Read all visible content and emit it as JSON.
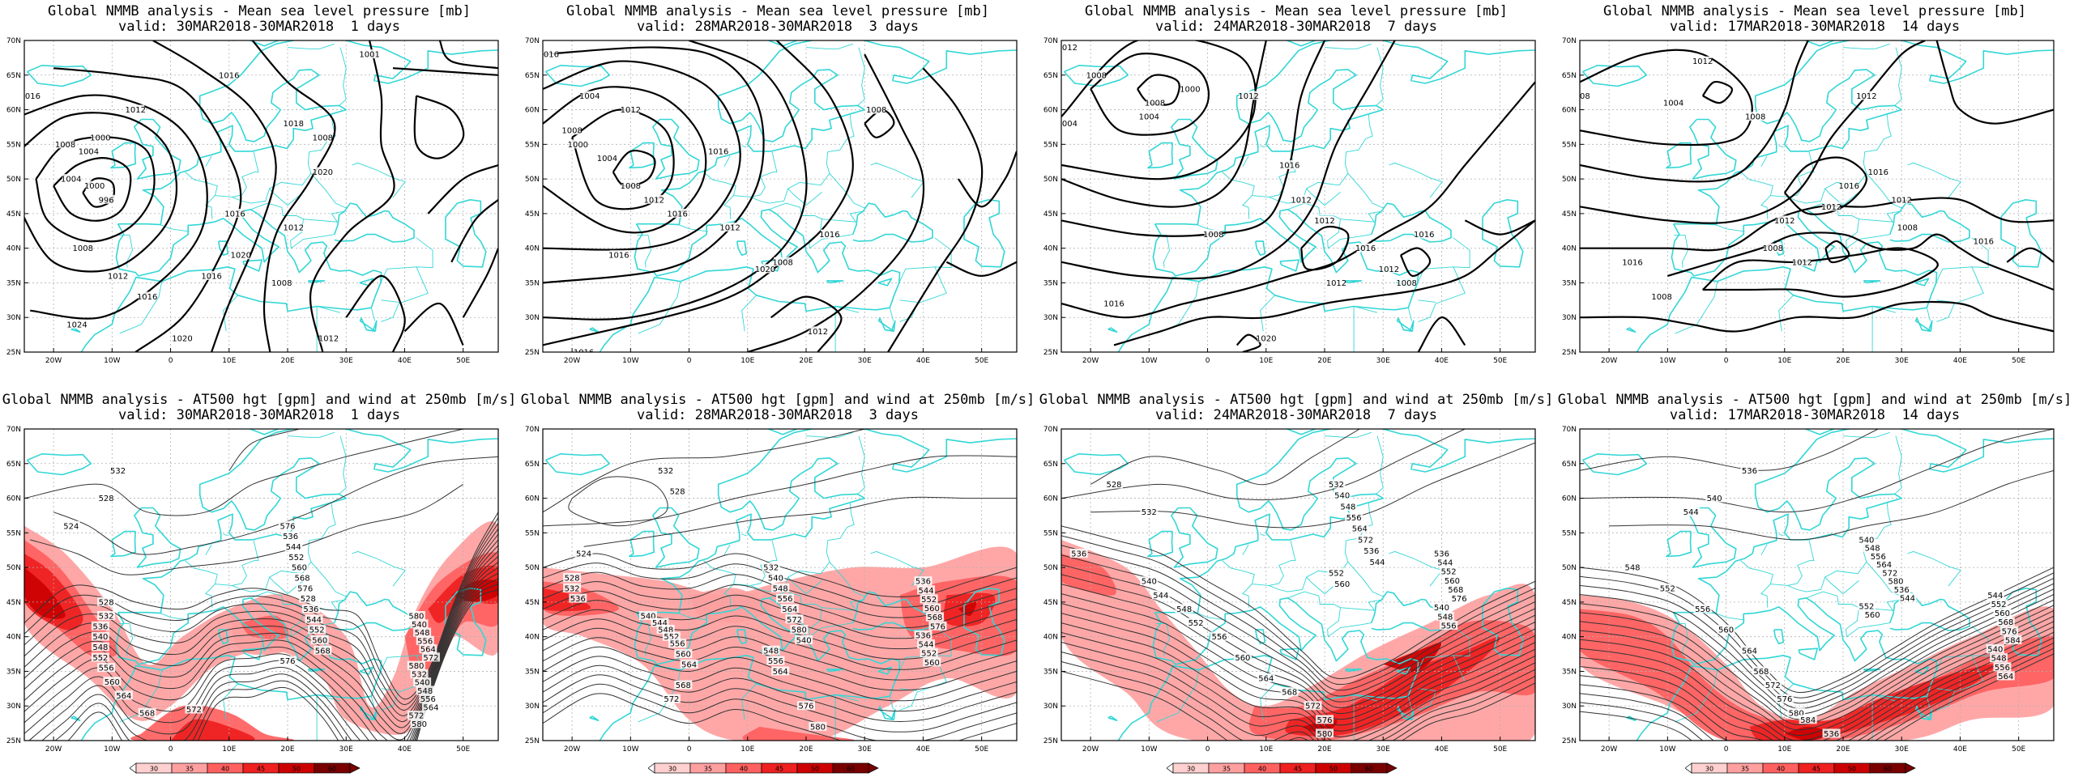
{
  "figure": {
    "colors": {
      "coast": "#33d6d6",
      "contour": "#000000",
      "grid": "#b0b0b0",
      "wind_scale": [
        "#ffffff",
        "#ffd0d0",
        "#ffa0a0",
        "#ff6060",
        "#ee2020",
        "#cc0000",
        "#7a0000"
      ]
    },
    "lat_labels": [
      "70N",
      "65N",
      "60N",
      "55N",
      "50N",
      "45N",
      "40N",
      "35N",
      "30N",
      "25N"
    ],
    "lon_labels": [
      "20W",
      "10W",
      "0",
      "10E",
      "20E",
      "30E",
      "40E",
      "50E"
    ],
    "colorbar_ticks": [
      "30",
      "35",
      "40",
      "45",
      "50",
      "60"
    ],
    "panels": [
      {
        "row": "mslp",
        "title": "Global NMMB analysis - Mean sea level pressure [mb]",
        "valid": "valid: 30MAR2018-30MAR2018  1 days",
        "contour_labels": [
          "1004",
          "1000",
          "1016",
          "1012",
          "1008",
          "1004",
          "1000",
          "996",
          "1008",
          "1012",
          "1016",
          "1020",
          "1024",
          "1020",
          "1016",
          "1012",
          "1008",
          "1020",
          "1016",
          "1016",
          "1008",
          "1012",
          "1001",
          "1018"
        ]
      },
      {
        "row": "mslp",
        "title": "Global NMMB analysis - Mean sea level pressure [mb]",
        "valid": "valid: 28MAR2018-30MAR2018  3 days",
        "contour_labels": [
          "1016",
          "1012",
          "1008",
          "1004",
          "1000",
          "1004",
          "1008",
          "1012",
          "1016",
          "1016",
          "1012",
          "1008",
          "1016",
          "1020",
          "1016",
          "1012",
          "1008",
          "1016"
        ]
      },
      {
        "row": "mslp",
        "title": "Global NMMB analysis - Mean sea level pressure [mb]",
        "valid": "valid: 24MAR2018-30MAR2018  7 days",
        "contour_labels": [
          "1012",
          "1008",
          "1004",
          "1000",
          "1004",
          "1008",
          "1012",
          "1016",
          "1012",
          "1008",
          "1012",
          "1016",
          "1012",
          "1008",
          "1012",
          "1016",
          "1016",
          "1020"
        ]
      },
      {
        "row": "mslp",
        "title": "Global NMMB analysis - Mean sea level pressure [mb]",
        "valid": "valid: 17MAR2018-30MAR2018  14 days",
        "contour_labels": [
          "1012",
          "1008",
          "1004",
          "1008",
          "1012",
          "1016",
          "1012",
          "1008",
          "1012",
          "1016",
          "1012",
          "1008",
          "1012",
          "1016",
          "1008",
          "1016"
        ]
      },
      {
        "row": "z500",
        "title": "Global NMMB analysis - AT500 hgt [gpm] and wind at 250mb [m/s]",
        "valid": "valid: 30MAR2018-30MAR2018  1 days",
        "contour_labels": [
          "532",
          "528",
          "524",
          "528",
          "532",
          "536",
          "540",
          "548",
          "552",
          "556",
          "560",
          "564",
          "568",
          "572",
          "576",
          "580",
          "536",
          "540",
          "544",
          "548",
          "552",
          "556",
          "560",
          "564",
          "568",
          "572",
          "576",
          "580",
          "528",
          "532",
          "536",
          "540",
          "544",
          "548",
          "552",
          "556",
          "560",
          "564",
          "568",
          "572",
          "576",
          "580"
        ]
      },
      {
        "row": "z500",
        "title": "Global NMMB analysis - AT500 hgt [gpm] and wind at 250mb [m/s]",
        "valid": "valid: 28MAR2018-30MAR2018  3 days",
        "contour_labels": [
          "532",
          "528",
          "524",
          "528",
          "532",
          "536",
          "540",
          "544",
          "548",
          "552",
          "556",
          "560",
          "564",
          "568",
          "572",
          "576",
          "580",
          "532",
          "536",
          "540",
          "544",
          "548",
          "552",
          "556",
          "560",
          "564",
          "568",
          "572",
          "576",
          "580",
          "536",
          "540",
          "544",
          "548",
          "552",
          "556",
          "560",
          "564"
        ]
      },
      {
        "row": "z500",
        "title": "Global NMMB analysis - AT500 hgt [gpm] and wind at 250mb [m/s]",
        "valid": "valid: 24MAR2018-30MAR2018  7 days",
        "contour_labels": [
          "528",
          "532",
          "536",
          "540",
          "544",
          "548",
          "552",
          "556",
          "560",
          "564",
          "568",
          "572",
          "576",
          "580",
          "532",
          "536",
          "540",
          "544",
          "548",
          "552",
          "556",
          "560",
          "564",
          "568",
          "572",
          "576",
          "536",
          "540",
          "544",
          "548",
          "552",
          "556",
          "560"
        ]
      },
      {
        "row": "z500",
        "title": "Global NMMB analysis - AT500 hgt [gpm] and wind at 250mb [m/s]",
        "valid": "valid: 17MAR2018-30MAR2018  14 days",
        "contour_labels": [
          "536",
          "540",
          "544",
          "548",
          "552",
          "556",
          "560",
          "564",
          "568",
          "572",
          "576",
          "580",
          "584",
          "536",
          "540",
          "544",
          "548",
          "552",
          "556",
          "560",
          "564",
          "568",
          "572",
          "576",
          "580",
          "584",
          "536",
          "540",
          "544",
          "548",
          "552",
          "556",
          "560",
          "564"
        ]
      }
    ]
  }
}
